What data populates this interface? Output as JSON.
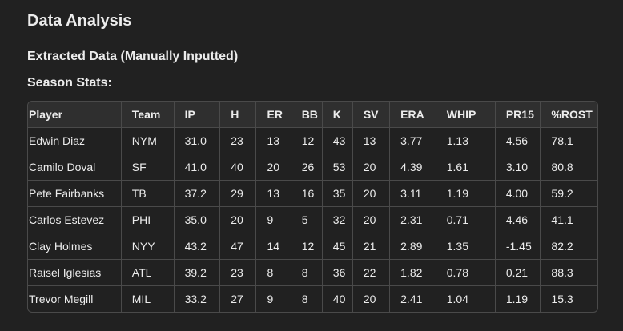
{
  "heading": "Data Analysis",
  "subheading": "Extracted Data (Manually Inputted)",
  "section_title": "Season Stats:",
  "table": {
    "columns": [
      "Player",
      "Team",
      "IP",
      "H",
      "ER",
      "BB",
      "K",
      "SV",
      "ERA",
      "WHIP",
      "PR15",
      "%ROST"
    ],
    "rows": [
      [
        "Edwin Diaz",
        "NYM",
        "31.0",
        "23",
        "13",
        "12",
        "43",
        "13",
        "3.77",
        "1.13",
        "4.56",
        "78.1"
      ],
      [
        "Camilo Doval",
        "SF",
        "41.0",
        "40",
        "20",
        "26",
        "53",
        "20",
        "4.39",
        "1.61",
        "3.10",
        "80.8"
      ],
      [
        "Pete Fairbanks",
        "TB",
        "37.2",
        "29",
        "13",
        "16",
        "35",
        "20",
        "3.11",
        "1.19",
        "4.00",
        "59.2"
      ],
      [
        "Carlos Estevez",
        "PHI",
        "35.0",
        "20",
        "9",
        "5",
        "32",
        "20",
        "2.31",
        "0.71",
        "4.46",
        "41.1"
      ],
      [
        "Clay Holmes",
        "NYY",
        "43.2",
        "47",
        "14",
        "12",
        "45",
        "21",
        "2.89",
        "1.35",
        "-1.45",
        "82.2"
      ],
      [
        "Raisel Iglesias",
        "ATL",
        "39.2",
        "23",
        "8",
        "8",
        "36",
        "22",
        "1.82",
        "0.78",
        "0.21",
        "88.3"
      ],
      [
        "Trevor Megill",
        "MIL",
        "33.2",
        "27",
        "9",
        "8",
        "40",
        "20",
        "2.41",
        "1.04",
        "1.19",
        "15.3"
      ]
    ]
  }
}
